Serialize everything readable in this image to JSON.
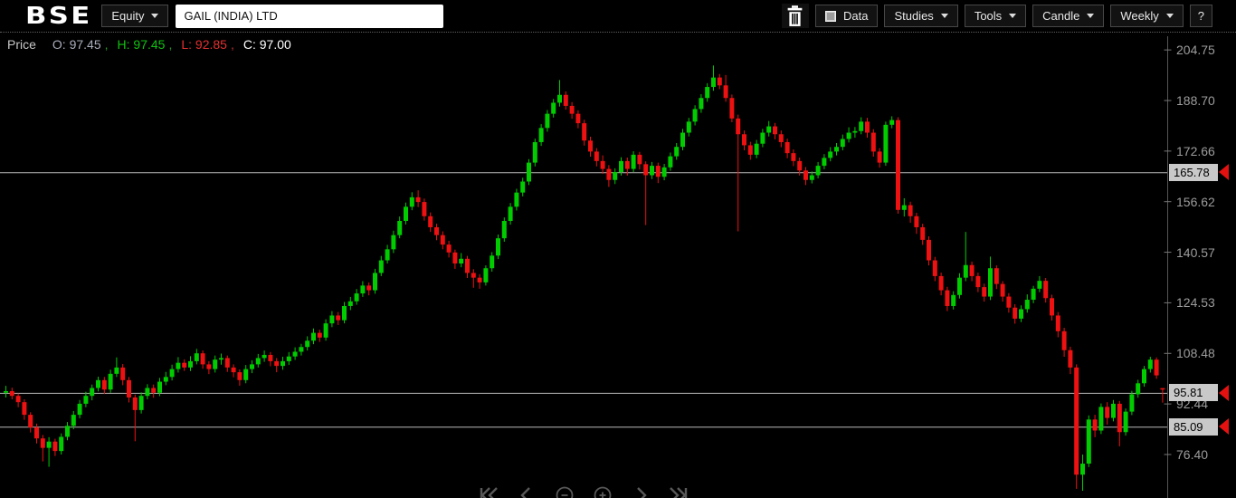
{
  "header": {
    "logo": "BSE",
    "equity_dropdown": "Equity",
    "symbol_search": "GAIL (INDIA) LTD",
    "data_button": "Data",
    "studies_dropdown": "Studies",
    "tools_dropdown": "Tools",
    "candle_dropdown": "Candle",
    "interval_dropdown": "Weekly",
    "help_button": "?"
  },
  "legend": {
    "price_label": "Price",
    "open_label": "O:",
    "open": "97.45",
    "high_label": "H:",
    "high": "97.45",
    "low_label": "L:",
    "low": "92.85",
    "close_label": "C:",
    "close": "97.00",
    "separator": ","
  },
  "colors": {
    "up": "#00cc00",
    "down": "#ee1111",
    "level_line": "#b9b9b9",
    "axis_line": "#555555",
    "tick_mark": "#787878",
    "label_bg": "#c9c9c9",
    "marker": "#e41111"
  },
  "bottom_nav": {
    "icons": [
      "jump-to-start",
      "step-back",
      "zoom-out",
      "zoom-in",
      "step-forward",
      "jump-to-end"
    ]
  },
  "chart_data": {
    "type": "candlestick",
    "symbol": "GAIL (INDIA) LTD",
    "interval": "Weekly",
    "last_candle": {
      "open": 97.45,
      "high": 97.45,
      "low": 92.85,
      "close": 97.0
    },
    "axis_ticks": [
      "204.75",
      "188.70",
      "172.66",
      "156.62",
      "140.57",
      "124.53",
      "108.48",
      "92.44",
      "76.40"
    ],
    "levels": [
      "165.78",
      "95.81",
      "85.09"
    ],
    "ylim": [
      62.6,
      209.1
    ],
    "grid": false,
    "layout": {
      "plot_left": 0,
      "plot_right": 1290,
      "plot_top": 40,
      "plot_bottom": 550,
      "x0": 4,
      "spacing": 6.8,
      "body_w": 5,
      "axis_x": 1290.5
    },
    "candles": [
      [
        96.0,
        98.2,
        94.5,
        96.5
      ],
      [
        96.5,
        97.6,
        93.9,
        95.0
      ],
      [
        95.0,
        95.8,
        91.4,
        93.0
      ],
      [
        93.0,
        93.9,
        87.4,
        89.0
      ],
      [
        89.0,
        89.8,
        83.4,
        85.0
      ],
      [
        85.0,
        86.2,
        79.9,
        81.5
      ],
      [
        81.5,
        82.6,
        74.2,
        78.5
      ],
      [
        78.5,
        81.9,
        72.5,
        80.5
      ],
      [
        80.5,
        81.4,
        75.9,
        77.5
      ],
      [
        77.5,
        83.1,
        76.4,
        82.0
      ],
      [
        82.0,
        86.7,
        80.9,
        85.5
      ],
      [
        85.5,
        90.2,
        84.4,
        89.0
      ],
      [
        89.0,
        93.7,
        87.9,
        92.5
      ],
      [
        92.5,
        96.3,
        91.4,
        95.0
      ],
      [
        95.0,
        98.6,
        93.6,
        97.5
      ],
      [
        97.5,
        101.1,
        96.4,
        100.0
      ],
      [
        100.0,
        101.0,
        95.6,
        97.0
      ],
      [
        97.0,
        103.3,
        96.0,
        102.0
      ],
      [
        102.0,
        107.2,
        101.0,
        104.0
      ],
      [
        104.0,
        105.1,
        98.4,
        100.0
      ],
      [
        100.0,
        101.0,
        92.9,
        94.5
      ],
      [
        94.5,
        95.4,
        80.6,
        90.5
      ],
      [
        90.5,
        96.1,
        89.4,
        95.0
      ],
      [
        95.0,
        98.7,
        93.9,
        97.5
      ],
      [
        97.5,
        98.6,
        94.4,
        96.0
      ],
      [
        96.0,
        100.7,
        94.9,
        99.5
      ],
      [
        99.5,
        102.6,
        98.4,
        101.0
      ],
      [
        101.0,
        104.9,
        99.9,
        103.5
      ],
      [
        103.5,
        107.3,
        102.4,
        105.5
      ],
      [
        105.5,
        106.6,
        102.9,
        104.0
      ],
      [
        104.0,
        107.6,
        102.9,
        106.0
      ],
      [
        106.0,
        109.9,
        105.0,
        108.5
      ],
      [
        108.5,
        109.4,
        103.6,
        105.0
      ],
      [
        105.0,
        106.0,
        101.9,
        103.5
      ],
      [
        103.5,
        107.8,
        102.4,
        106.5
      ],
      [
        106.5,
        108.4,
        104.9,
        107.0
      ],
      [
        107.0,
        107.8,
        102.6,
        104.0
      ],
      [
        104.0,
        105.0,
        100.9,
        102.5
      ],
      [
        102.5,
        103.4,
        98.2,
        100.0
      ],
      [
        100.0,
        104.8,
        99.0,
        103.5
      ],
      [
        103.5,
        106.3,
        102.2,
        105.0
      ],
      [
        105.0,
        108.3,
        104.0,
        107.0
      ],
      [
        107.0,
        109.4,
        105.8,
        108.0
      ],
      [
        108.0,
        108.9,
        104.4,
        106.0
      ],
      [
        106.0,
        107.0,
        102.5,
        104.5
      ],
      [
        104.5,
        107.4,
        103.3,
        106.0
      ],
      [
        106.0,
        108.9,
        104.8,
        107.5
      ],
      [
        107.5,
        110.4,
        106.4,
        109.0
      ],
      [
        109.0,
        111.5,
        107.8,
        110.5
      ],
      [
        110.5,
        113.9,
        109.4,
        112.5
      ],
      [
        112.5,
        116.4,
        111.4,
        115.0
      ],
      [
        115.0,
        116.0,
        112.1,
        113.5
      ],
      [
        113.5,
        119.3,
        112.5,
        118.0
      ],
      [
        118.0,
        121.9,
        116.8,
        120.5
      ],
      [
        120.5,
        121.6,
        117.5,
        119.0
      ],
      [
        119.0,
        124.8,
        118.0,
        123.5
      ],
      [
        123.5,
        126.4,
        122.2,
        125.0
      ],
      [
        125.0,
        128.9,
        123.9,
        127.5
      ],
      [
        127.5,
        131.4,
        126.4,
        130.0
      ],
      [
        130.0,
        131.0,
        126.9,
        128.5
      ],
      [
        128.5,
        135.3,
        127.4,
        134.0
      ],
      [
        134.0,
        139.4,
        133.0,
        138.0
      ],
      [
        138.0,
        142.9,
        137.0,
        141.5
      ],
      [
        141.5,
        147.4,
        140.3,
        146.0
      ],
      [
        146.0,
        151.9,
        145.0,
        150.5
      ],
      [
        150.5,
        156.3,
        149.4,
        155.0
      ],
      [
        155.0,
        159.6,
        153.9,
        158.0
      ],
      [
        158.0,
        160.2,
        154.9,
        156.5
      ],
      [
        156.5,
        157.6,
        150.6,
        152.0
      ],
      [
        152.0,
        153.2,
        147.0,
        148.5
      ],
      [
        148.5,
        149.6,
        144.4,
        146.0
      ],
      [
        146.0,
        147.2,
        141.5,
        143.0
      ],
      [
        143.0,
        144.2,
        138.9,
        140.5
      ],
      [
        140.5,
        141.4,
        135.3,
        137.0
      ],
      [
        137.0,
        140.3,
        135.8,
        138.5
      ],
      [
        138.5,
        139.4,
        132.4,
        134.0
      ],
      [
        134.0,
        135.2,
        129.3,
        132.5
      ],
      [
        132.5,
        133.6,
        129.0,
        131.0
      ],
      [
        131.0,
        136.4,
        130.0,
        135.5
      ],
      [
        135.5,
        140.6,
        134.4,
        139.5
      ],
      [
        139.5,
        146.2,
        138.4,
        145.0
      ],
      [
        145.0,
        151.6,
        143.9,
        150.5
      ],
      [
        150.5,
        156.2,
        149.3,
        155.0
      ],
      [
        155.0,
        160.7,
        153.8,
        159.5
      ],
      [
        159.5,
        164.2,
        158.3,
        163.0
      ],
      [
        163.0,
        170.1,
        161.9,
        169.0
      ],
      [
        169.0,
        176.6,
        167.8,
        175.5
      ],
      [
        175.5,
        181.2,
        174.3,
        180.0
      ],
      [
        180.0,
        185.7,
        178.8,
        184.5
      ],
      [
        184.5,
        189.2,
        183.3,
        188.0
      ],
      [
        188.0,
        195.2,
        186.8,
        190.5
      ],
      [
        190.5,
        191.6,
        185.8,
        187.0
      ],
      [
        187.0,
        188.2,
        182.9,
        184.5
      ],
      [
        184.5,
        185.6,
        179.9,
        181.5
      ],
      [
        181.5,
        182.6,
        174.4,
        176.0
      ],
      [
        176.0,
        177.2,
        170.9,
        172.5
      ],
      [
        172.5,
        173.6,
        167.8,
        169.5
      ],
      [
        169.5,
        171.3,
        165.4,
        167.0
      ],
      [
        167.0,
        168.2,
        161.3,
        163.5
      ],
      [
        163.5,
        167.2,
        162.2,
        166.0
      ],
      [
        166.0,
        170.7,
        164.9,
        169.5
      ],
      [
        169.5,
        170.6,
        164.9,
        167.0
      ],
      [
        167.0,
        172.6,
        166.0,
        171.5
      ],
      [
        171.5,
        172.4,
        166.8,
        168.5
      ],
      [
        168.5,
        169.4,
        149.2,
        165.0
      ],
      [
        165.0,
        169.2,
        163.8,
        168.0
      ],
      [
        168.0,
        169.0,
        162.5,
        164.5
      ],
      [
        164.5,
        168.6,
        163.4,
        167.5
      ],
      [
        167.5,
        172.2,
        166.4,
        171.0
      ],
      [
        171.0,
        175.2,
        169.9,
        174.0
      ],
      [
        174.0,
        179.7,
        172.9,
        178.5
      ],
      [
        178.5,
        183.2,
        177.3,
        182.0
      ],
      [
        182.0,
        187.2,
        180.8,
        186.0
      ],
      [
        186.0,
        190.7,
        184.8,
        189.5
      ],
      [
        189.5,
        194.2,
        188.3,
        193.0
      ],
      [
        193.0,
        199.8,
        191.8,
        196.0
      ],
      [
        196.0,
        197.1,
        192.3,
        193.5
      ],
      [
        193.5,
        196.8,
        188.3,
        189.5
      ],
      [
        189.5,
        190.6,
        181.8,
        183.0
      ],
      [
        183.0,
        184.2,
        147.2,
        178.0
      ],
      [
        178.0,
        179.2,
        172.9,
        174.5
      ],
      [
        174.5,
        175.6,
        169.9,
        171.5
      ],
      [
        171.5,
        176.2,
        170.4,
        175.0
      ],
      [
        175.0,
        179.7,
        173.9,
        178.5
      ],
      [
        178.5,
        182.2,
        177.3,
        180.5
      ],
      [
        180.5,
        181.6,
        176.4,
        178.0
      ],
      [
        178.0,
        179.2,
        173.9,
        175.5
      ],
      [
        175.5,
        176.6,
        170.4,
        172.0
      ],
      [
        172.0,
        173.2,
        167.9,
        169.5
      ],
      [
        169.5,
        170.6,
        164.9,
        166.5
      ],
      [
        166.5,
        167.6,
        161.9,
        163.5
      ],
      [
        163.5,
        166.2,
        162.4,
        165.0
      ],
      [
        165.0,
        169.2,
        164.0,
        168.0
      ],
      [
        168.0,
        171.7,
        166.9,
        170.5
      ],
      [
        170.5,
        173.9,
        169.4,
        172.5
      ],
      [
        172.5,
        175.2,
        171.3,
        174.0
      ],
      [
        174.0,
        177.9,
        172.9,
        176.5
      ],
      [
        176.5,
        180.2,
        175.4,
        178.5
      ],
      [
        178.5,
        180.3,
        176.9,
        179.0
      ],
      [
        179.0,
        183.4,
        178.0,
        182.0
      ],
      [
        182.0,
        183.2,
        176.9,
        178.5
      ],
      [
        178.5,
        179.6,
        170.9,
        172.5
      ],
      [
        172.5,
        173.6,
        167.4,
        169.0
      ],
      [
        169.0,
        182.0,
        168.0,
        181.0
      ],
      [
        181.0,
        183.7,
        179.9,
        182.5
      ],
      [
        182.5,
        183.4,
        152.8,
        154.0
      ],
      [
        154.0,
        157.7,
        151.9,
        155.5
      ],
      [
        155.5,
        156.6,
        149.9,
        152.0
      ],
      [
        152.0,
        153.1,
        146.4,
        148.5
      ],
      [
        148.5,
        149.6,
        142.9,
        144.5
      ],
      [
        144.5,
        145.6,
        136.4,
        138.0
      ],
      [
        138.0,
        139.1,
        131.4,
        133.0
      ],
      [
        133.0,
        134.1,
        126.9,
        128.5
      ],
      [
        128.5,
        129.6,
        121.9,
        123.5
      ],
      [
        123.5,
        128.2,
        122.4,
        127.0
      ],
      [
        127.0,
        133.9,
        125.9,
        132.5
      ],
      [
        132.5,
        147.0,
        131.4,
        136.5
      ],
      [
        136.5,
        137.6,
        131.4,
        133.0
      ],
      [
        133.0,
        134.1,
        127.9,
        129.5
      ],
      [
        129.5,
        130.6,
        124.9,
        126.5
      ],
      [
        126.5,
        139.2,
        125.4,
        135.5
      ],
      [
        135.5,
        136.4,
        128.9,
        130.5
      ],
      [
        130.5,
        131.4,
        124.9,
        126.5
      ],
      [
        126.5,
        127.6,
        121.4,
        123.0
      ],
      [
        123.0,
        124.1,
        117.9,
        119.5
      ],
      [
        119.5,
        123.7,
        118.4,
        122.5
      ],
      [
        122.5,
        127.2,
        121.4,
        125.5
      ],
      [
        125.5,
        129.9,
        124.4,
        129.0
      ],
      [
        129.0,
        133.0,
        127.9,
        131.5
      ],
      [
        131.5,
        132.4,
        124.6,
        126.0
      ],
      [
        126.0,
        127.1,
        118.9,
        120.5
      ],
      [
        120.5,
        121.6,
        113.6,
        115.5
      ],
      [
        115.5,
        116.6,
        107.4,
        109.5
      ],
      [
        109.5,
        110.6,
        101.9,
        104.0
      ],
      [
        104.0,
        105.0,
        65.5,
        70.0
      ],
      [
        70.0,
        76.4,
        64.9,
        73.5
      ],
      [
        73.5,
        88.8,
        72.4,
        87.5
      ],
      [
        87.5,
        89.0,
        81.9,
        84.0
      ],
      [
        84.0,
        92.6,
        82.9,
        91.5
      ],
      [
        91.5,
        93.0,
        85.9,
        88.0
      ],
      [
        88.0,
        93.7,
        86.9,
        92.5
      ],
      [
        92.5,
        93.4,
        79.0,
        83.5
      ],
      [
        83.5,
        91.0,
        82.4,
        90.0
      ],
      [
        90.0,
        96.6,
        88.9,
        95.5
      ],
      [
        95.5,
        100.1,
        94.4,
        99.0
      ],
      [
        99.0,
        104.5,
        97.9,
        103.5
      ],
      [
        103.5,
        107.4,
        102.4,
        106.5
      ],
      [
        106.5,
        107.2,
        100.4,
        101.5
      ],
      [
        97.45,
        97.45,
        92.85,
        97.0
      ]
    ]
  }
}
